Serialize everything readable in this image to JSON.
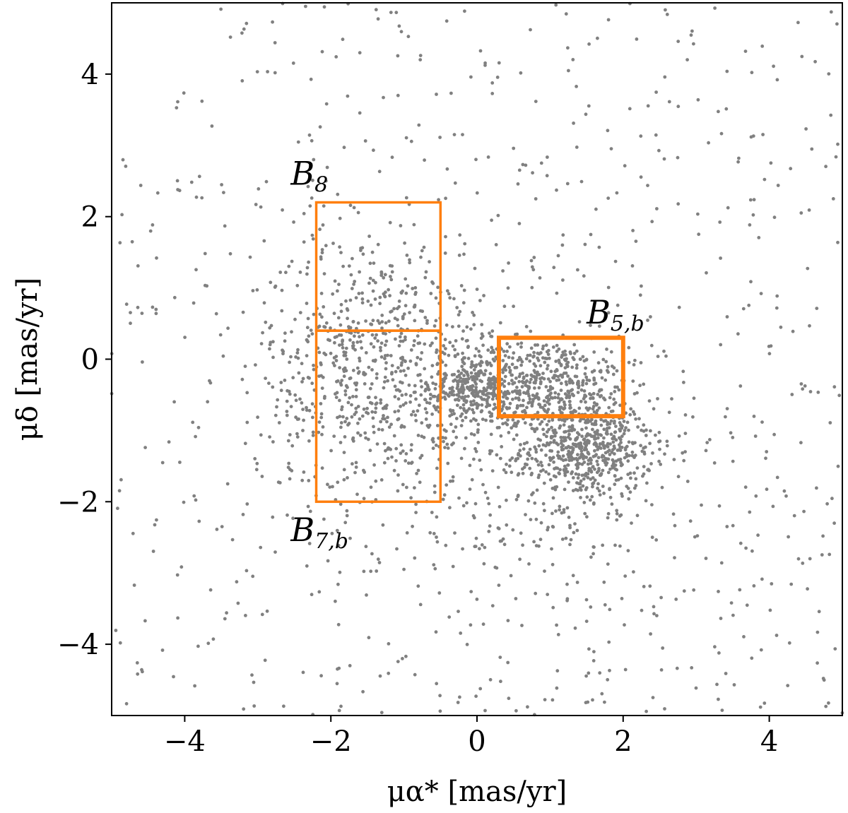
{
  "chart_data": {
    "type": "scatter",
    "title": "",
    "xlabel": "μα* [mas/yr]",
    "ylabel": "μδ [mas/yr]",
    "xlim": [
      -5,
      5
    ],
    "ylim": [
      -5,
      5
    ],
    "xticks": [
      -4,
      -2,
      0,
      2,
      4
    ],
    "yticks": [
      -4,
      -2,
      0,
      2,
      4
    ],
    "xtick_labels": [
      "−4",
      "−2",
      "0",
      "2",
      "4"
    ],
    "ytick_labels": [
      "−4",
      "−2",
      "0",
      "2",
      "4"
    ],
    "grid": false,
    "point_color": "#808080",
    "box_color": "#ff7f0e",
    "components": [
      {
        "kind": "uniform-field",
        "n": 700
      },
      {
        "kind": "gaussian",
        "n": 550,
        "cx": 1.5,
        "cy": -1.25,
        "sx": 0.45,
        "sy": 0.35
      },
      {
        "kind": "gaussian",
        "n": 400,
        "cx": 0.9,
        "cy": -0.3,
        "sx": 0.6,
        "sy": 0.3
      },
      {
        "kind": "gaussian",
        "n": 300,
        "cx": 0.0,
        "cy": -0.4,
        "sx": 0.35,
        "sy": 0.3
      },
      {
        "kind": "gaussian",
        "n": 700,
        "cx": -1.4,
        "cy": -0.1,
        "sx": 0.75,
        "sy": 0.95
      },
      {
        "kind": "gaussian",
        "n": 300,
        "cx": 1.0,
        "cy": -1.7,
        "sx": 1.3,
        "sy": 1.1
      }
    ],
    "boxes": [
      {
        "name": "B",
        "sub": "8",
        "x0": -2.2,
        "x1": -0.5,
        "y0": 0.4,
        "y1": 2.2,
        "label_x": -2.55,
        "label_y": 2.45,
        "stroke": 3.5
      },
      {
        "name": "B",
        "sub": "7,b",
        "x0": -2.2,
        "x1": -0.5,
        "y0": -2.0,
        "y1": 0.4,
        "label_x": -2.55,
        "label_y": -2.55,
        "stroke": 3.5
      },
      {
        "name": "B",
        "sub": "5,b",
        "x0": 0.3,
        "x1": 2.0,
        "y0": -0.8,
        "y1": 0.3,
        "label_x": 1.5,
        "label_y": 0.5,
        "stroke": 6
      }
    ]
  }
}
